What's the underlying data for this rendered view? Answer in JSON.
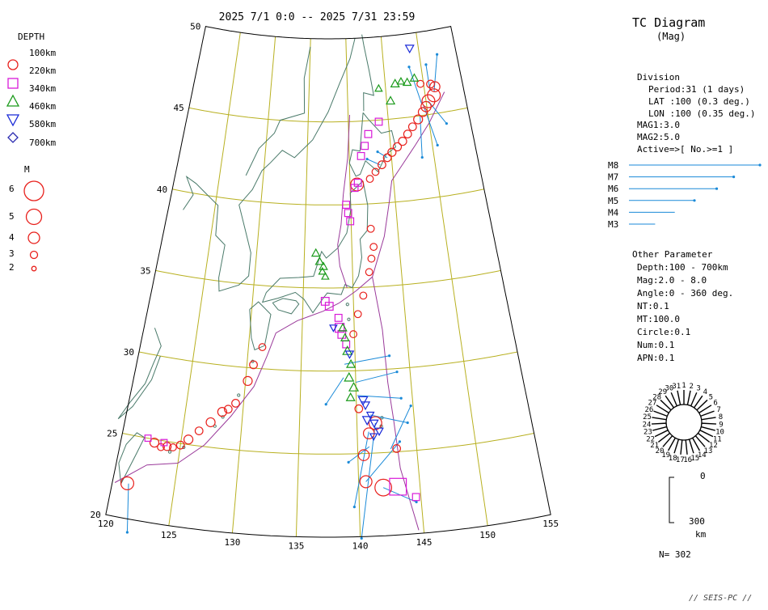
{
  "title": "2025 7/1 0:0 -- 2025 7/31 23:59",
  "diagram_title": "TC Diagram",
  "diagram_subtitle": "(Mag)",
  "footer": "// SEIS-PC //",
  "count": "N= 302",
  "depth_legend": {
    "title": "DEPTH",
    "items": [
      {
        "label": "100km",
        "shape": "circle-red",
        "color": "#e8201c"
      },
      {
        "label": "220km",
        "shape": "circle",
        "color": "#e8201c"
      },
      {
        "label": "340km",
        "shape": "square",
        "color": "#d81ad8"
      },
      {
        "label": "460km",
        "shape": "triangle-up",
        "color": "#1a9a1a"
      },
      {
        "label": "580km",
        "shape": "triangle-down",
        "color": "#1a2ad8"
      },
      {
        "label": "700km",
        "shape": "diamond",
        "color": "#2a2ab0"
      }
    ]
  },
  "mag_legend": {
    "title": "M",
    "items": [
      {
        "label": "6",
        "mag": 6
      },
      {
        "label": "5",
        "mag": 5
      },
      {
        "label": "4",
        "mag": 4
      },
      {
        "label": "3",
        "mag": 3
      },
      {
        "label": "2",
        "mag": 2
      }
    ]
  },
  "division": {
    "title": "Division",
    "lines": [
      "Period:31 (1 days)",
      "LAT  :100 (0.3 deg.)",
      "LON  :100 (0.35 deg.)",
      "MAG1:3.0",
      "MAG2:5.0",
      "Active=>[ No.>=1 ]"
    ]
  },
  "mag_bars": [
    {
      "label": "M8",
      "length": 1.0
    },
    {
      "label": "M7",
      "length": 0.8
    },
    {
      "label": "M6",
      "length": 0.67
    },
    {
      "label": "M5",
      "length": 0.5
    },
    {
      "label": "M4",
      "length": 0.35
    },
    {
      "label": "M3",
      "length": 0.2
    }
  ],
  "other_parameter": {
    "title": "Other Parameter",
    "lines": [
      "Depth:100 - 700km",
      "Mag:2.0 - 8.0",
      "Angle:0 - 360 deg.",
      "NT:0.1",
      "MT:100.0",
      "Circle:0.1",
      "Num:0.1",
      "APN:0.1"
    ]
  },
  "rose_labels": [
    "1",
    "2",
    "3",
    "4",
    "5",
    "6",
    "7",
    "8",
    "9",
    "10",
    "11",
    "12",
    "13",
    "14",
    "15",
    "16",
    "17",
    "18",
    "19",
    "20",
    "21",
    "22",
    "23",
    "24",
    "25",
    "26",
    "27",
    "28",
    "29",
    "30",
    "31"
  ],
  "depth_scale": {
    "top": "0",
    "bottom": "300",
    "unit": "km"
  },
  "colors": {
    "grid": "#b8b020",
    "coast": "#4a7a6a",
    "trench": "#9a3a9a",
    "vector": "#1a8ad8",
    "shallow": "#e8201c",
    "mid": "#d81ad8",
    "deep": "#1a9a1a",
    "deeper": "#1a2ad8"
  },
  "chart_data": {
    "type": "scatter",
    "title": "2025 7/1 0:0 -- 2025 7/31 23:59",
    "x_ticks": [
      "120",
      "125",
      "130",
      "135",
      "140",
      "145",
      "150",
      "155"
    ],
    "y_ticks": [
      "20",
      "25",
      "30",
      "35",
      "40",
      "45",
      "50"
    ],
    "xlim": [
      120,
      155
    ],
    "ylim": [
      20,
      50
    ],
    "series": [
      {
        "name": "220km",
        "marker": "circle",
        "points": [
          [
            121.2,
            22.1,
            4.5
          ],
          [
            122.8,
            24.8,
            3.5
          ],
          [
            123.4,
            24.6,
            3.0
          ],
          [
            123.9,
            24.7,
            3.3
          ],
          [
            124.4,
            24.7,
            3.0
          ],
          [
            125.0,
            24.9,
            3.2
          ],
          [
            125.6,
            25.3,
            3.5
          ],
          [
            126.4,
            25.9,
            3.2
          ],
          [
            127.3,
            26.5,
            3.5
          ],
          [
            128.2,
            27.2,
            3.5
          ],
          [
            128.7,
            27.4,
            3.2
          ],
          [
            129.3,
            27.8,
            3.2
          ],
          [
            130.2,
            29.2,
            3.5
          ],
          [
            130.6,
            30.2,
            3.2
          ],
          [
            131.3,
            31.3,
            3.0
          ],
          [
            141.0,
            26.2,
            4.0
          ],
          [
            141.6,
            26.8,
            4.5
          ],
          [
            140.2,
            27.7,
            3.2
          ],
          [
            140.5,
            24.9,
            4.0
          ],
          [
            140.6,
            23.3,
            4.3
          ],
          [
            142.0,
            22.9,
            5.5
          ],
          [
            143.3,
            25.2,
            3.2
          ],
          [
            142.1,
            38.5,
            3.0
          ],
          [
            142.3,
            37.4,
            3.0
          ],
          [
            142.0,
            36.7,
            3.0
          ],
          [
            141.7,
            35.9,
            3.0
          ],
          [
            141.0,
            34.5,
            3.0
          ],
          [
            140.4,
            33.4,
            3.0
          ],
          [
            139.9,
            32.2,
            3.0
          ],
          [
            140.8,
            41.2,
            4.5
          ],
          [
            142.3,
            41.5,
            3.0
          ],
          [
            143.0,
            41.9,
            3.0
          ],
          [
            143.8,
            42.3,
            3.2
          ],
          [
            144.5,
            42.7,
            3.2
          ],
          [
            145.1,
            43.0,
            3.3
          ],
          [
            145.8,
            43.3,
            3.3
          ],
          [
            146.5,
            43.6,
            3.3
          ],
          [
            147.2,
            44.0,
            3.2
          ],
          [
            147.9,
            44.4,
            3.2
          ],
          [
            148.7,
            44.8,
            3.5
          ],
          [
            149.4,
            45.2,
            3.5
          ],
          [
            149.9,
            45.5,
            3.8
          ],
          [
            150.3,
            45.8,
            4.5
          ],
          [
            151.1,
            46.1,
            4.5
          ],
          [
            151.4,
            46.6,
            3.8
          ],
          [
            150.9,
            46.8,
            3.2
          ],
          [
            149.6,
            46.9,
            3.0
          ]
        ]
      },
      {
        "name": "340km",
        "marker": "square",
        "points": [
          [
            122.2,
            25.0,
            2.8
          ],
          [
            123.6,
            24.9,
            2.8
          ],
          [
            137.2,
            34.2,
            3.2
          ],
          [
            137.6,
            33.9,
            3.2
          ],
          [
            138.6,
            32.6,
            3.5
          ],
          [
            138.8,
            32.2,
            3.2
          ],
          [
            139.2,
            31.6,
            3.0
          ],
          [
            138.5,
            33.2,
            3.0
          ],
          [
            143.2,
            22.9,
            5.5
          ],
          [
            144.6,
            22.2,
            3.0
          ],
          [
            140.5,
            41.0,
            3.0
          ],
          [
            140.9,
            41.3,
            3.0
          ],
          [
            141.4,
            42.9,
            3.0
          ],
          [
            141.9,
            43.5,
            3.0
          ],
          [
            142.4,
            44.2,
            3.0
          ],
          [
            143.8,
            44.9,
            3.0
          ],
          [
            139.5,
            40.0,
            3.0
          ],
          [
            139.7,
            39.5,
            3.0
          ],
          [
            139.9,
            39.0,
            3.0
          ]
        ]
      },
      {
        "name": "460km",
        "marker": "triangle-up",
        "points": [
          [
            136.2,
            37.1,
            3.2
          ],
          [
            136.6,
            36.6,
            3.2
          ],
          [
            137.0,
            36.3,
            3.2
          ],
          [
            136.9,
            36.0,
            3.0
          ],
          [
            137.2,
            35.7,
            3.0
          ],
          [
            138.9,
            32.6,
            3.2
          ],
          [
            139.1,
            32.0,
            3.2
          ],
          [
            139.3,
            31.2,
            3.5
          ],
          [
            139.6,
            30.4,
            3.3
          ],
          [
            139.4,
            29.6,
            3.5
          ],
          [
            139.8,
            29.0,
            3.5
          ],
          [
            139.5,
            28.4,
            3.3
          ],
          [
            146.3,
            47.1,
            3.3
          ],
          [
            145.5,
            46.1,
            3.3
          ],
          [
            147.9,
            47.1,
            3.2
          ],
          [
            148.9,
            47.3,
            3.2
          ],
          [
            147.1,
            47.2,
            3.0
          ],
          [
            144.1,
            46.9,
            3.0
          ]
        ]
      },
      {
        "name": "580km",
        "marker": "triangle-down",
        "points": [
          [
            140.6,
            28.2,
            3.5
          ],
          [
            140.8,
            27.9,
            3.3
          ],
          [
            141.2,
            27.3,
            3.0
          ],
          [
            141.5,
            26.8,
            3.2
          ],
          [
            141.9,
            26.3,
            3.2
          ],
          [
            141.4,
            26.0,
            3.0
          ],
          [
            140.9,
            27.0,
            3.5
          ],
          [
            138.0,
            32.6,
            3.0
          ],
          [
            139.5,
            31.0,
            3.2
          ],
          [
            148.8,
            49.1,
            3.3
          ]
        ]
      }
    ],
    "vectors": [
      [
        121.3,
        22.1,
        121.9,
        19.2
      ],
      [
        141.6,
        26.8,
        140.1,
        19.9
      ],
      [
        141.0,
        26.3,
        139.6,
        21.8
      ],
      [
        140.6,
        23.3,
        143.6,
        25.6
      ],
      [
        142.0,
        22.9,
        144.6,
        21.9
      ],
      [
        141.2,
        27.3,
        144.4,
        26.7
      ],
      [
        140.1,
        28.5,
        144.0,
        28.2
      ],
      [
        140.0,
        29.3,
        143.8,
        29.8
      ],
      [
        139.0,
        30.4,
        143.2,
        30.8
      ],
      [
        138.9,
        29.6,
        137.3,
        28.0
      ],
      [
        141.0,
        25.4,
        139.2,
        24.5
      ],
      [
        142.8,
        25.2,
        144.8,
        27.7
      ],
      [
        151.2,
        46.3,
        152.4,
        48.5
      ],
      [
        150.3,
        45.8,
        152.1,
        44.3
      ],
      [
        149.6,
        45.6,
        150.6,
        43.1
      ],
      [
        149.0,
        45.0,
        148.6,
        42.5
      ],
      [
        150.7,
        46.4,
        150.7,
        48.0
      ],
      [
        149.4,
        45.7,
        148.4,
        48.0
      ],
      [
        143.6,
        42.3,
        142.1,
        42.7
      ],
      [
        144.5,
        42.7,
        143.4,
        43.1
      ]
    ],
    "mag_bar_scale": "M3 - M8"
  }
}
